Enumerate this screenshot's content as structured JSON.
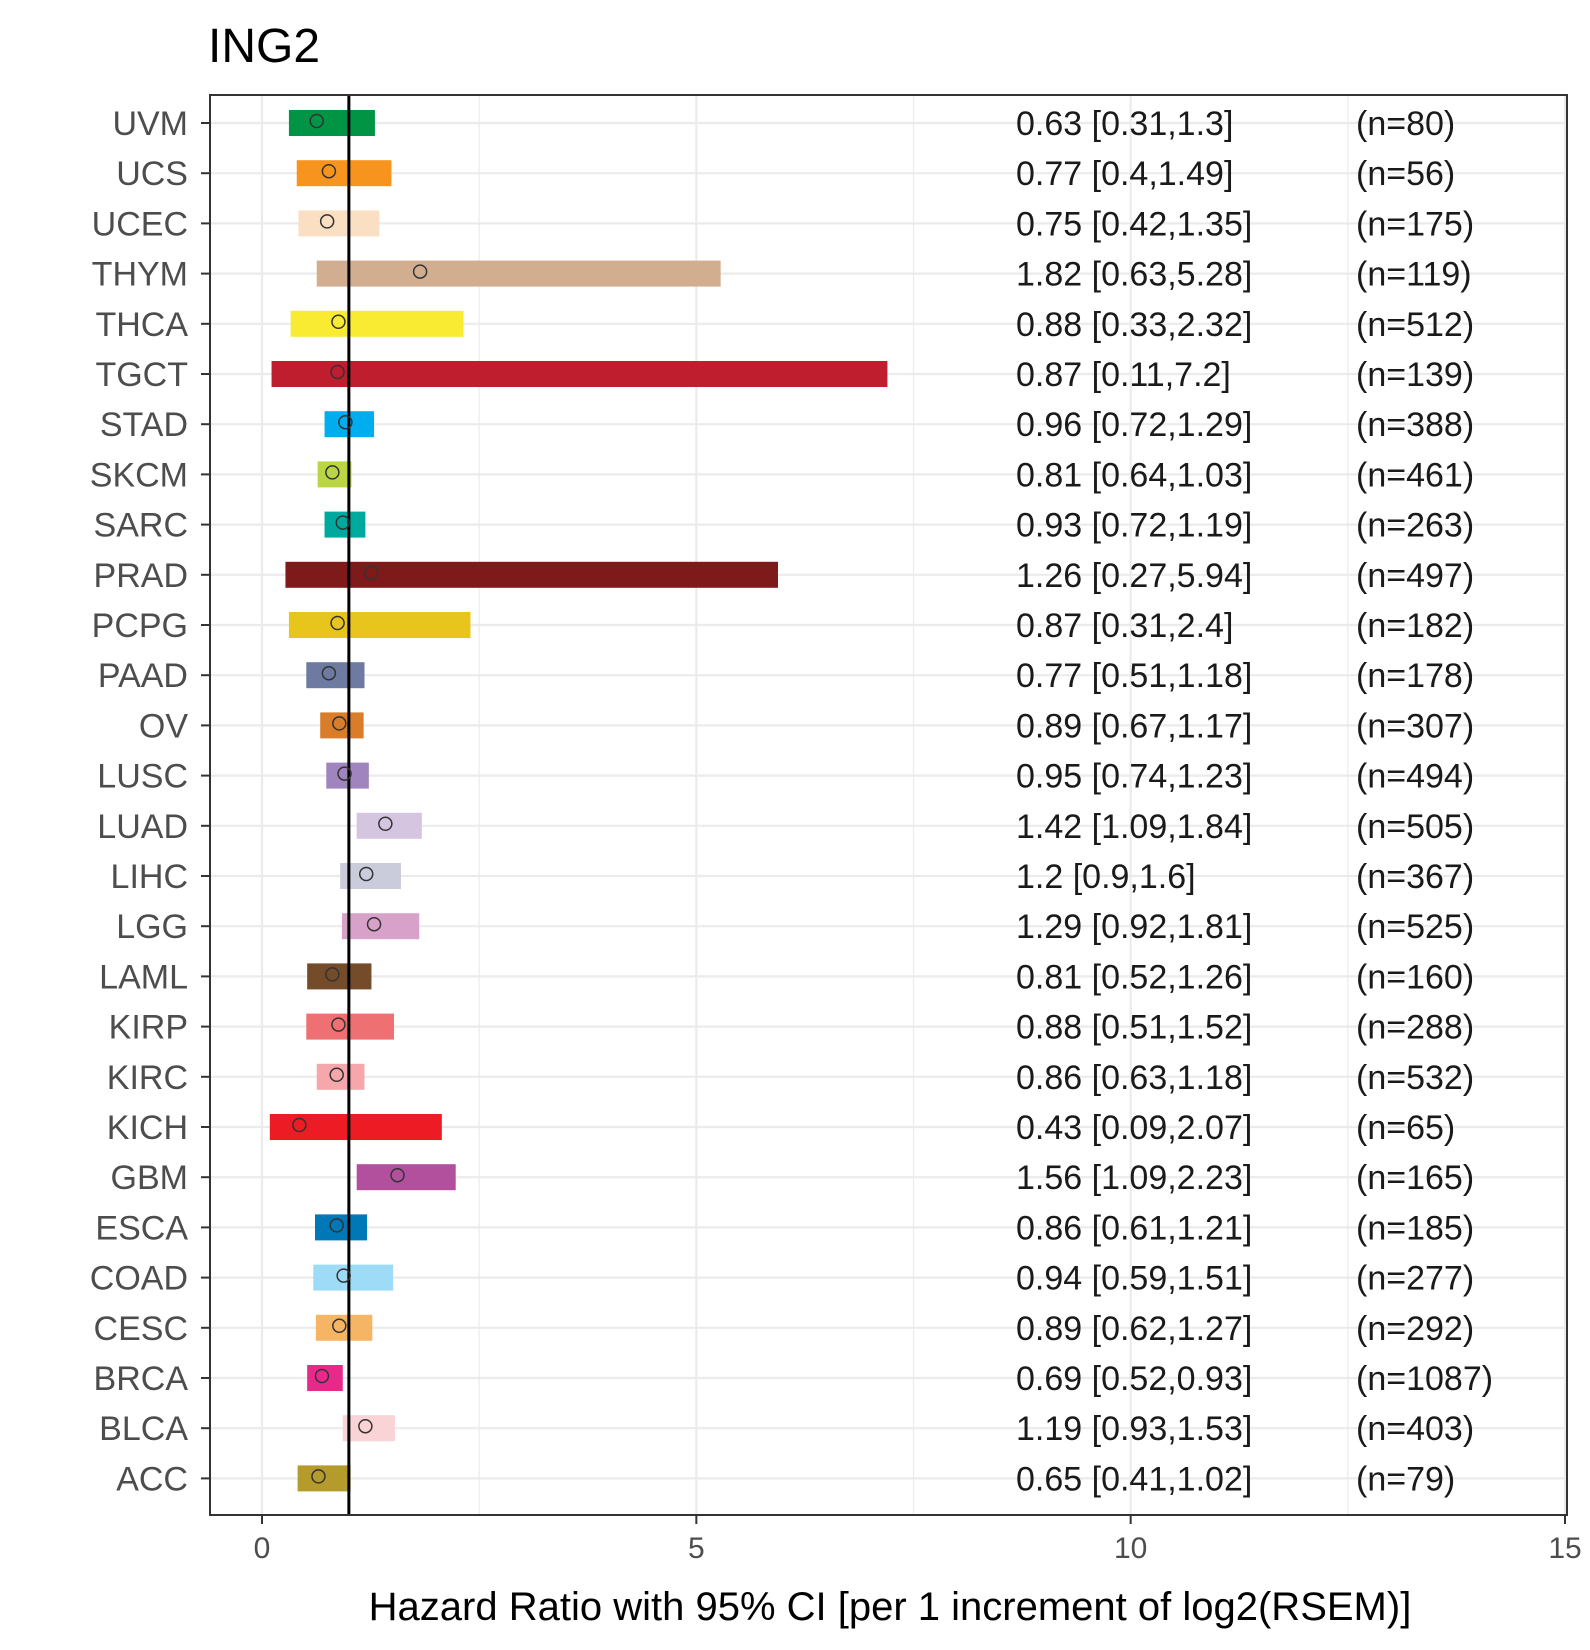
{
  "chart_data": {
    "type": "forest",
    "title": "ING2",
    "xlabel": "Hazard Ratio with 95% CI [per 1 increment of log2(RSEM)]",
    "xlim": [
      0,
      15
    ],
    "x_ticks": [
      0,
      5,
      10,
      15
    ],
    "reference_line": 1,
    "grid": true,
    "rows": [
      {
        "label": "UVM",
        "hr": 0.63,
        "low": 0.31,
        "high": 1.3,
        "text": "0.63 [0.31,1.3]",
        "n": "(n=80)",
        "color": "#009444"
      },
      {
        "label": "UCS",
        "hr": 0.77,
        "low": 0.4,
        "high": 1.49,
        "text": "0.77 [0.4,1.49]",
        "n": "(n=56)",
        "color": "#F7941D"
      },
      {
        "label": "UCEC",
        "hr": 0.75,
        "low": 0.42,
        "high": 1.35,
        "text": "0.75 [0.42,1.35]",
        "n": "(n=175)",
        "color": "#FBDFC2"
      },
      {
        "label": "THYM",
        "hr": 1.82,
        "low": 0.63,
        "high": 5.28,
        "text": "1.82 [0.63,5.28]",
        "n": "(n=119)",
        "color": "#D1AE8F"
      },
      {
        "label": "THCA",
        "hr": 0.88,
        "low": 0.33,
        "high": 2.32,
        "text": "0.88 [0.33,2.32]",
        "n": "(n=512)",
        "color": "#F8EB32"
      },
      {
        "label": "TGCT",
        "hr": 0.87,
        "low": 0.11,
        "high": 7.2,
        "text": "0.87 [0.11,7.2]",
        "n": "(n=139)",
        "color": "#BE1E2D"
      },
      {
        "label": "STAD",
        "hr": 0.96,
        "low": 0.72,
        "high": 1.29,
        "text": "0.96 [0.72,1.29]",
        "n": "(n=388)",
        "color": "#00AEEF"
      },
      {
        "label": "SKCM",
        "hr": 0.81,
        "low": 0.64,
        "high": 1.03,
        "text": "0.81 [0.64,1.03]",
        "n": "(n=461)",
        "color": "#BBD645"
      },
      {
        "label": "SARC",
        "hr": 0.93,
        "low": 0.72,
        "high": 1.19,
        "text": "0.93 [0.72,1.19]",
        "n": "(n=263)",
        "color": "#00A99D"
      },
      {
        "label": "PRAD",
        "hr": 1.26,
        "low": 0.27,
        "high": 5.94,
        "text": "1.26 [0.27,5.94]",
        "n": "(n=497)",
        "color": "#7E1A1A"
      },
      {
        "label": "PCPG",
        "hr": 0.87,
        "low": 0.31,
        "high": 2.4,
        "text": "0.87 [0.31,2.4]",
        "n": "(n=182)",
        "color": "#E8C51D"
      },
      {
        "label": "PAAD",
        "hr": 0.77,
        "low": 0.51,
        "high": 1.18,
        "text": "0.77 [0.51,1.18]",
        "n": "(n=178)",
        "color": "#6D7BA3"
      },
      {
        "label": "OV",
        "hr": 0.89,
        "low": 0.67,
        "high": 1.17,
        "text": "0.89 [0.67,1.17]",
        "n": "(n=307)",
        "color": "#D97D2B"
      },
      {
        "label": "LUSC",
        "hr": 0.95,
        "low": 0.74,
        "high": 1.23,
        "text": "0.95 [0.74,1.23]",
        "n": "(n=494)",
        "color": "#A084BD"
      },
      {
        "label": "LUAD",
        "hr": 1.42,
        "low": 1.09,
        "high": 1.84,
        "text": "1.42 [1.09,1.84]",
        "n": "(n=505)",
        "color": "#D6C5E0"
      },
      {
        "label": "LIHC",
        "hr": 1.2,
        "low": 0.9,
        "high": 1.6,
        "text": "1.2 [0.9,1.6]",
        "n": "(n=367)",
        "color": "#CACCDB"
      },
      {
        "label": "LGG",
        "hr": 1.29,
        "low": 0.92,
        "high": 1.81,
        "text": "1.29 [0.92,1.81]",
        "n": "(n=525)",
        "color": "#D7A1C9"
      },
      {
        "label": "LAML",
        "hr": 0.81,
        "low": 0.52,
        "high": 1.26,
        "text": "0.81 [0.52,1.26]",
        "n": "(n=160)",
        "color": "#754C29"
      },
      {
        "label": "KIRP",
        "hr": 0.88,
        "low": 0.51,
        "high": 1.52,
        "text": "0.88 [0.51,1.52]",
        "n": "(n=288)",
        "color": "#EE7073"
      },
      {
        "label": "KIRC",
        "hr": 0.86,
        "low": 0.63,
        "high": 1.18,
        "text": "0.86 [0.63,1.18]",
        "n": "(n=532)",
        "color": "#F5A7AC"
      },
      {
        "label": "KICH",
        "hr": 0.43,
        "low": 0.09,
        "high": 2.07,
        "text": "0.43 [0.09,2.07]",
        "n": "(n=65)",
        "color": "#ED1C24"
      },
      {
        "label": "GBM",
        "hr": 1.56,
        "low": 1.09,
        "high": 2.23,
        "text": "1.56 [1.09,2.23]",
        "n": "(n=165)",
        "color": "#B2509E"
      },
      {
        "label": "ESCA",
        "hr": 0.86,
        "low": 0.61,
        "high": 1.21,
        "text": "0.86 [0.61,1.21]",
        "n": "(n=185)",
        "color": "#0077B6"
      },
      {
        "label": "COAD",
        "hr": 0.94,
        "low": 0.59,
        "high": 1.51,
        "text": "0.94 [0.59,1.51]",
        "n": "(n=277)",
        "color": "#9EDBF7"
      },
      {
        "label": "CESC",
        "hr": 0.89,
        "low": 0.62,
        "high": 1.27,
        "text": "0.89 [0.62,1.27]",
        "n": "(n=292)",
        "color": "#F5B565"
      },
      {
        "label": "BRCA",
        "hr": 0.69,
        "low": 0.52,
        "high": 0.93,
        "text": "0.69 [0.52,0.93]",
        "n": "(n=1087)",
        "color": "#E7298A"
      },
      {
        "label": "BLCA",
        "hr": 1.19,
        "low": 0.93,
        "high": 1.53,
        "text": "1.19 [0.93,1.53]",
        "n": "(n=403)",
        "color": "#F9D3D5"
      },
      {
        "label": "ACC",
        "hr": 0.65,
        "low": 0.41,
        "high": 1.02,
        "text": "0.65 [0.41,1.02]",
        "n": "(n=79)",
        "color": "#B59A2C"
      }
    ]
  }
}
